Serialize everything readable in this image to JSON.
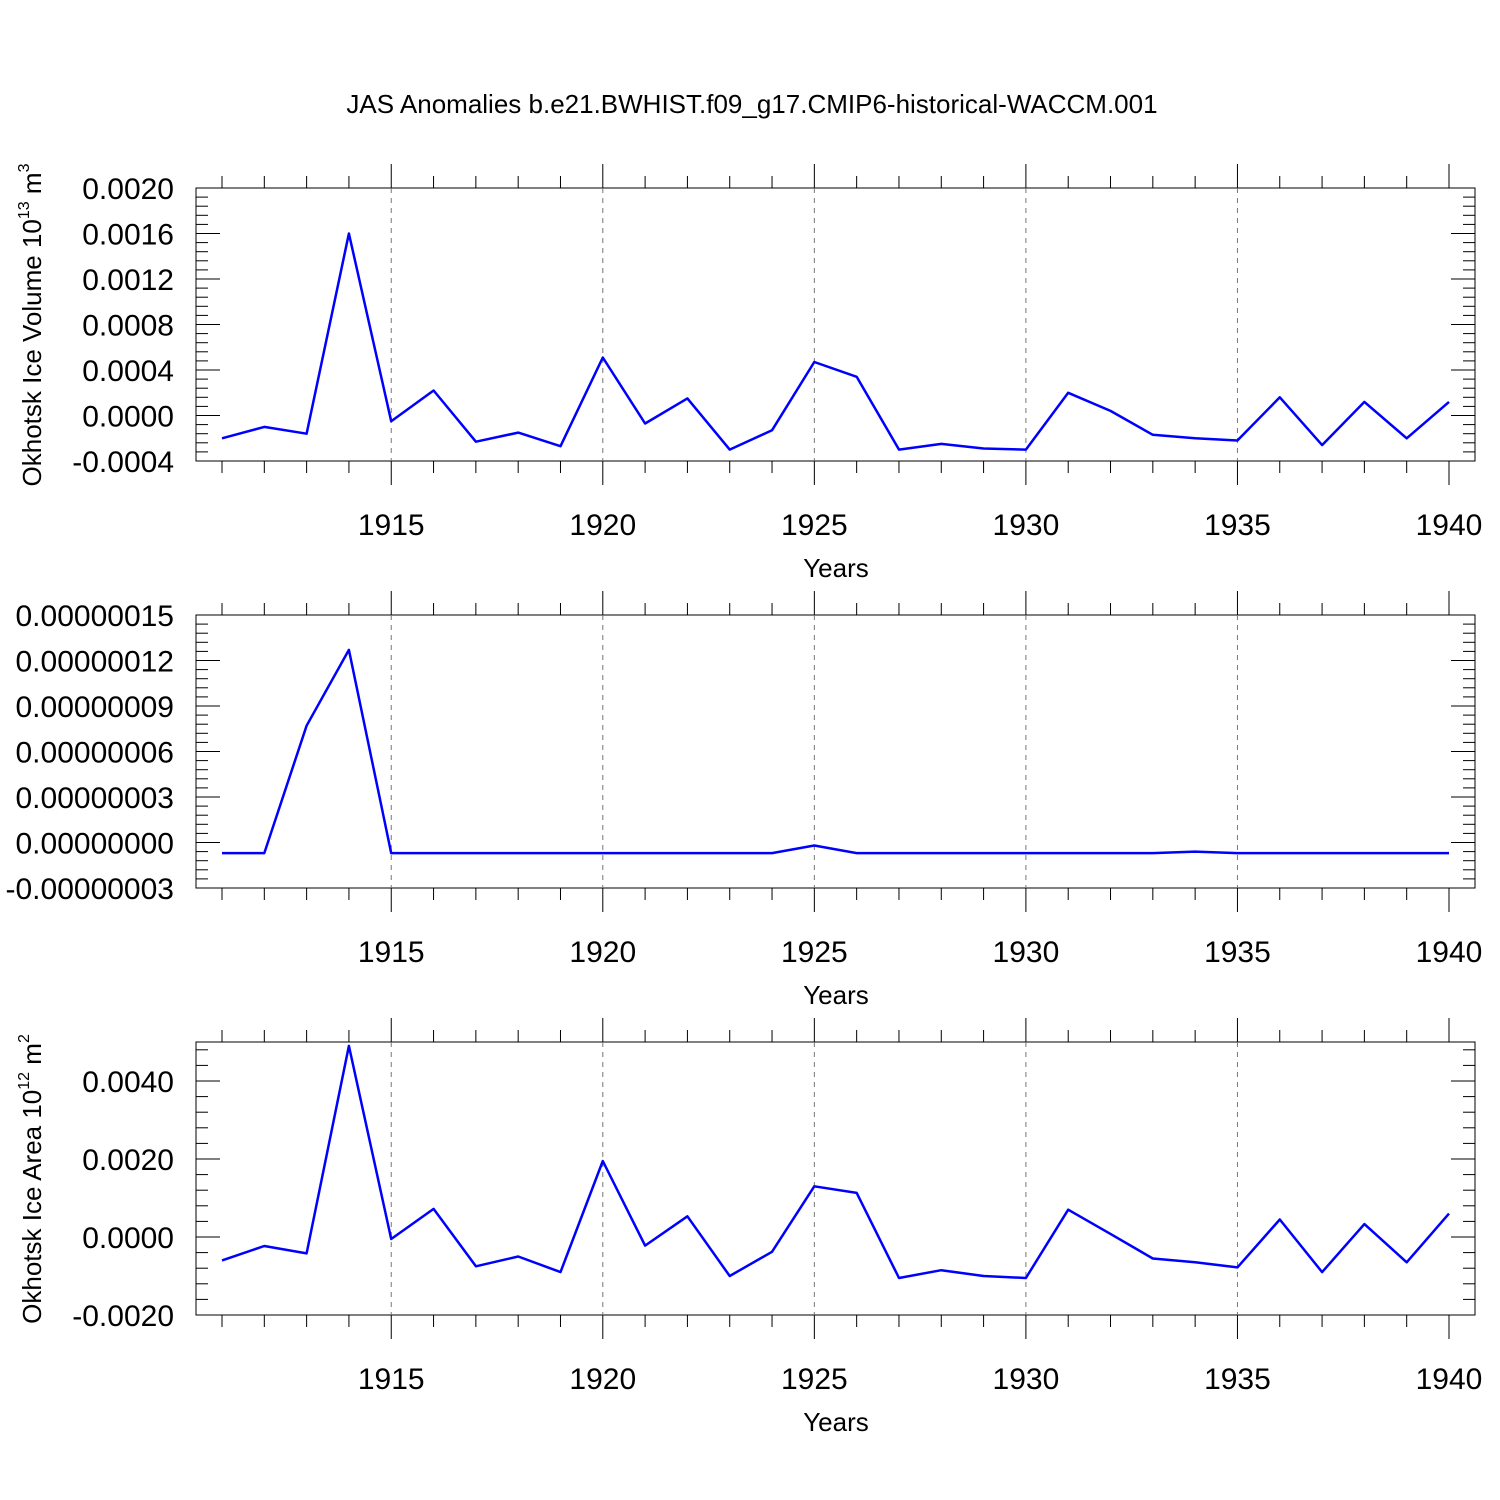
{
  "title": "JAS Anomalies b.e21.BWHIST.f09_g17.CMIP6-historical-WACCM.001",
  "colors": {
    "line": "#0000ff",
    "grid": "#777777",
    "frame": "#000000"
  },
  "chart_data": [
    {
      "type": "line",
      "title": "",
      "xlabel": "Years",
      "ylabel": {
        "text": "Okhotsk Ice Volume 10",
        "sup": "13",
        "unit": " m",
        "unit_sup": "3"
      },
      "xlim": [
        1911,
        1940
      ],
      "ylim": [
        -0.0004,
        0.002
      ],
      "yticks": [
        "-0.0004",
        "0.0000",
        "0.0004",
        "0.0008",
        "0.0012",
        "0.0016",
        "0.0020"
      ],
      "xticks": [
        "1915",
        "1920",
        "1925",
        "1930",
        "1935",
        "1940"
      ],
      "grid": "vertical-dashed",
      "x": [
        1911,
        1912,
        1913,
        1914,
        1915,
        1916,
        1917,
        1918,
        1919,
        1920,
        1921,
        1922,
        1923,
        1924,
        1925,
        1926,
        1927,
        1928,
        1929,
        1930,
        1931,
        1932,
        1933,
        1934,
        1935,
        1936,
        1937,
        1938,
        1939,
        1940
      ],
      "series": [
        {
          "values": [
            -0.0002,
            -0.0001,
            -0.00016,
            0.0016,
            -5e-05,
            0.00022,
            -0.00023,
            -0.00015,
            -0.00027,
            0.00051,
            -7e-05,
            0.00015,
            -0.0003,
            -0.00013,
            0.00047,
            0.00034,
            -0.0003,
            -0.00025,
            -0.00029,
            -0.0003,
            0.0002,
            4e-05,
            -0.00017,
            -0.0002,
            -0.00022,
            0.00016,
            -0.00026,
            0.00012,
            -0.0002,
            0.00012
          ]
        }
      ]
    },
    {
      "type": "line",
      "title": "",
      "xlabel": "Years",
      "ylabel": null,
      "xlim": [
        1911,
        1940
      ],
      "ylim": [
        -3e-08,
        1.5e-07
      ],
      "yticks": [
        "-0.00000003",
        "0.00000000",
        "0.00000003",
        "0.00000006",
        "0.00000009",
        "0.00000012",
        "0.00000015"
      ],
      "xticks": [
        "1915",
        "1920",
        "1925",
        "1930",
        "1935",
        "1940"
      ],
      "grid": "vertical-dashed",
      "x": [
        1911,
        1912,
        1913,
        1914,
        1915,
        1916,
        1917,
        1918,
        1919,
        1920,
        1921,
        1922,
        1923,
        1924,
        1925,
        1926,
        1927,
        1928,
        1929,
        1930,
        1931,
        1932,
        1933,
        1934,
        1935,
        1936,
        1937,
        1938,
        1939,
        1940
      ],
      "series": [
        {
          "values": [
            -7e-09,
            -7e-09,
            7.7e-08,
            1.27e-07,
            -7e-09,
            -7e-09,
            -7e-09,
            -7e-09,
            -7e-09,
            -7e-09,
            -7e-09,
            -7e-09,
            -7e-09,
            -7e-09,
            -2e-09,
            -7e-09,
            -7e-09,
            -7e-09,
            -7e-09,
            -7e-09,
            -7e-09,
            -7e-09,
            -7e-09,
            -6e-09,
            -7e-09,
            -7e-09,
            -7e-09,
            -7e-09,
            -7e-09,
            -7e-09
          ]
        }
      ]
    },
    {
      "type": "line",
      "title": "",
      "xlabel": "Years",
      "ylabel": {
        "text": "Okhotsk Ice Area 10",
        "sup": "12",
        "unit": " m",
        "unit_sup": "2"
      },
      "xlim": [
        1911,
        1940
      ],
      "ylim": [
        -0.002,
        0.005
      ],
      "yticks": [
        "-0.0020",
        "0.0000",
        "0.0020",
        "0.0040"
      ],
      "xticks": [
        "1915",
        "1920",
        "1925",
        "1930",
        "1935",
        "1940"
      ],
      "grid": "vertical-dashed",
      "x": [
        1911,
        1912,
        1913,
        1914,
        1915,
        1916,
        1917,
        1918,
        1919,
        1920,
        1921,
        1922,
        1923,
        1924,
        1925,
        1926,
        1927,
        1928,
        1929,
        1930,
        1931,
        1932,
        1933,
        1934,
        1935,
        1936,
        1937,
        1938,
        1939,
        1940
      ],
      "series": [
        {
          "values": [
            -0.0006,
            -0.00023,
            -0.00042,
            0.0049,
            -5e-05,
            0.00072,
            -0.00075,
            -0.0005,
            -0.0009,
            0.00195,
            -0.00022,
            0.00053,
            -0.001,
            -0.00038,
            0.0013,
            0.00113,
            -0.00105,
            -0.00085,
            -0.001,
            -0.00105,
            0.0007,
            8e-05,
            -0.00055,
            -0.00065,
            -0.00078,
            0.00045,
            -0.0009,
            0.00033,
            -0.00065,
            0.0006
          ]
        }
      ]
    }
  ]
}
